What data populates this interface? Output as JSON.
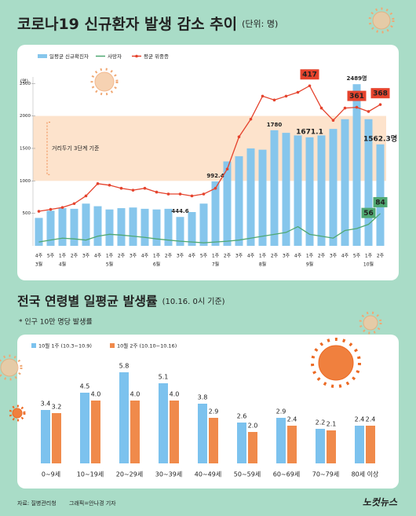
{
  "chart_data": [
    {
      "type": "bar-line",
      "title": "코로나19 신규환자 발생 감소 추이",
      "subtitle": "(단위: 명)",
      "y_label": "(명)",
      "categories": [
        "4주",
        "5주",
        "1주",
        "2주",
        "3주",
        "4주",
        "1주",
        "2주",
        "3주",
        "4주",
        "1주",
        "2주",
        "3주",
        "4주",
        "5주",
        "1주",
        "2주",
        "3주",
        "4주",
        "1주",
        "2주",
        "3주",
        "4주",
        "1주",
        "2주",
        "3주",
        "4주",
        "5주",
        "1주",
        "2주"
      ],
      "x_groups": [
        "3월",
        null,
        "4월",
        null,
        null,
        null,
        "5월",
        null,
        null,
        null,
        "6월",
        null,
        null,
        null,
        null,
        "7월",
        null,
        null,
        null,
        "8월",
        null,
        null,
        null,
        "9월",
        null,
        null,
        null,
        null,
        "10월",
        null
      ],
      "ylim": [
        0,
        2600
      ],
      "yticks": [
        500,
        1000,
        1500,
        2000,
        2500
      ],
      "y2lim": [
        0,
        440
      ],
      "band": {
        "range": [
          1000,
          2000
        ],
        "label": "거리두기 3단계 기준",
        "color": "#fde3cc"
      },
      "series": [
        {
          "name": "일평균 신규확진자",
          "type": "bar",
          "color": "#86c6ec",
          "values": [
            430,
            540,
            580,
            570,
            650,
            610,
            560,
            580,
            590,
            570,
            560,
            570,
            444.6,
            520,
            650,
            992.4,
            1300,
            1380,
            1500,
            1480,
            1780,
            1740,
            1700,
            1671.1,
            1700,
            1800,
            1950,
            2489,
            1950,
            1562.3
          ],
          "value_labels": [
            null,
            null,
            null,
            null,
            null,
            null,
            null,
            null,
            null,
            null,
            null,
            null,
            "444.6",
            null,
            null,
            "992.4",
            null,
            null,
            null,
            null,
            "1780",
            null,
            null,
            "1671.1",
            null,
            null,
            null,
            "2489명",
            null,
            "1562.3명"
          ]
        },
        {
          "name": "사망자",
          "type": "line",
          "axis": "y2",
          "color": "#4fa872",
          "values": [
            10,
            15,
            20,
            18,
            15,
            25,
            30,
            28,
            25,
            22,
            18,
            15,
            12,
            10,
            8,
            10,
            12,
            15,
            20,
            25,
            30,
            35,
            50,
            30,
            25,
            20,
            40,
            45,
            56,
            84
          ],
          "value_labels": [
            null,
            null,
            null,
            null,
            null,
            null,
            null,
            null,
            null,
            null,
            null,
            null,
            null,
            null,
            null,
            null,
            null,
            null,
            null,
            null,
            null,
            null,
            null,
            null,
            null,
            null,
            null,
            null,
            "56",
            "84"
          ]
        },
        {
          "name": "평균 위중증",
          "type": "line",
          "axis": "y2",
          "color": "#e5432d",
          "values": [
            90,
            95,
            100,
            110,
            130,
            162,
            158,
            150,
            145,
            150,
            140,
            135,
            135,
            130,
            135,
            150,
            200,
            284,
            330,
            390,
            380,
            390,
            400,
            417,
            359,
            327,
            359,
            361,
            350,
            368
          ],
          "value_labels": [
            null,
            null,
            null,
            null,
            null,
            null,
            null,
            null,
            null,
            null,
            null,
            null,
            null,
            null,
            null,
            null,
            null,
            null,
            null,
            null,
            null,
            null,
            null,
            "417",
            null,
            null,
            null,
            "361",
            null,
            "368"
          ]
        }
      ]
    },
    {
      "type": "grouped-bar",
      "title": "전국 연령별 일평균 발생률",
      "subtitle": "(10.16. 0시 기준)",
      "note": "* 인구 10만 명당 발생률",
      "categories": [
        "0~9세",
        "10~19세",
        "20~29세",
        "30~39세",
        "40~49세",
        "50~59세",
        "60~69세",
        "70~79세",
        "80세 이상"
      ],
      "ylim": [
        0,
        6.5
      ],
      "series": [
        {
          "name": "10월 1주 (10.3~10.9)",
          "color": "#7cc2ee",
          "label_color": "#4aa6dc",
          "values": [
            3.4,
            4.5,
            5.8,
            5.1,
            3.8,
            2.6,
            2.9,
            2.2,
            2.4
          ]
        },
        {
          "name": "10월 2주 (10.10~10.16)",
          "color": "#f08a4b",
          "label_color": "#e0652a",
          "values": [
            3.2,
            4.0,
            4.0,
            4.0,
            2.9,
            2.0,
            2.4,
            2.1,
            2.4
          ],
          "value_labels": [
            "3.2",
            "4.0",
            "4.0",
            "4.0",
            "2.9",
            "2.0",
            "2.4",
            "2.1",
            "2.4"
          ]
        }
      ]
    }
  ],
  "footer": {
    "source": "자료: 질병관리청",
    "credit": "그래픽=안나경 기자",
    "logo": "노컷뉴스"
  }
}
